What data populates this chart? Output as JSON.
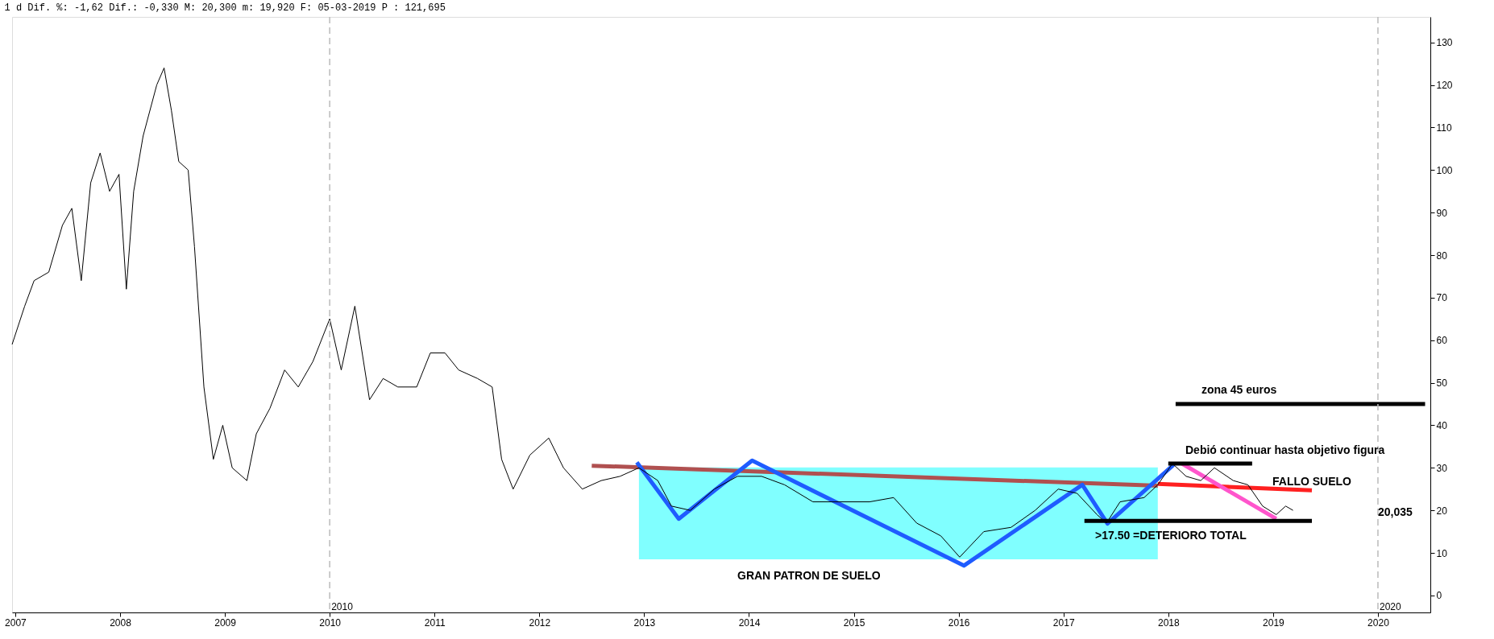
{
  "chart_data": {
    "type": "line",
    "title": "1 d Dif. %: -1,62 Dif.: -0,330 M: 20,300 m: 19,920 F: 05-03-2019 P : 121,695",
    "xlim": [
      2006.97,
      2020.5
    ],
    "xticks": [
      2007,
      2008,
      2009,
      2010,
      2011,
      2012,
      2013,
      2014,
      2015,
      2016,
      2017,
      2018,
      2019,
      2020
    ],
    "ylim": [
      -4,
      136
    ],
    "yticks": [
      0,
      10,
      20,
      30,
      40,
      50,
      60,
      70,
      80,
      90,
      100,
      110,
      120,
      130
    ],
    "grid": false,
    "marker": "none",
    "line_style": "solid",
    "series": [
      {
        "color": "#000000",
        "x": [
          2006.97,
          2007.09,
          2007.18,
          2007.32,
          2007.45,
          2007.54,
          2007.63,
          2007.72,
          2007.81,
          2007.9,
          2007.99,
          2008.06,
          2008.13,
          2008.22,
          2008.35,
          2008.42,
          2008.49,
          2008.56,
          2008.65,
          2008.71,
          2008.8,
          2008.89,
          2008.98,
          2009.07,
          2009.21,
          2009.3,
          2009.43,
          2009.57,
          2009.7,
          2009.84,
          2010.0,
          2010.11,
          2010.24,
          2010.38,
          2010.51,
          2010.65,
          2010.83,
          2010.96,
          2011.1,
          2011.23,
          2011.41,
          2011.55,
          2011.64,
          2011.75,
          2011.91,
          2012.09,
          2012.23,
          2012.41,
          2012.59,
          2012.77,
          2012.95,
          2013.13,
          2013.26,
          2013.44,
          2013.67,
          2013.89,
          2014.12,
          2014.34,
          2014.61,
          2014.88,
          2015.15,
          2015.38,
          2015.6,
          2015.83,
          2016.01,
          2016.24,
          2016.5,
          2016.73,
          2016.95,
          2017.13,
          2017.32,
          2017.41,
          2017.54,
          2017.77,
          2017.9,
          2018.04,
          2018.17,
          2018.31,
          2018.44,
          2018.62,
          2018.76,
          2018.9,
          2019.03,
          2019.12,
          2019.19
        ],
        "values": [
          59,
          68,
          74,
          76,
          87,
          91,
          74,
          97,
          104,
          95,
          99,
          72,
          95,
          108,
          120,
          124,
          114,
          102,
          100,
          82,
          49,
          32,
          40,
          30,
          27,
          38,
          44,
          53,
          49,
          55,
          65,
          53,
          68,
          46,
          51,
          49,
          49,
          57,
          57,
          53,
          51,
          49,
          32,
          25,
          33,
          37,
          30,
          25,
          27,
          28,
          30,
          27,
          21,
          20,
          25,
          28,
          28,
          26,
          22,
          22,
          22,
          23,
          17,
          14,
          9,
          15,
          16,
          20,
          25,
          24,
          19,
          17,
          22,
          23,
          26,
          31,
          28,
          27,
          30,
          27,
          26,
          21,
          19,
          21,
          20
        ]
      },
      {
        "type": "line",
        "color": "#80ffff",
        "x": [
          2012.95,
          2017.9
        ],
        "lower": [
          8.5,
          8.5
        ],
        "upper": [
          30,
          30
        ],
        "values": [
          30,
          30
        ]
      },
      {
        "type": "line",
        "color": "#b05050",
        "x": [
          2012.5,
          2017.9
        ],
        "values": [
          30.5,
          25.8
        ]
      },
      {
        "type": "line",
        "color": "#1f5cff",
        "x": [
          2012.93,
          2013.33,
          2014.03,
          2016.05,
          2017.18,
          2017.42,
          2018.05
        ],
        "values": [
          31.3,
          18,
          31.7,
          7,
          26,
          16.9,
          30.7
        ]
      },
      {
        "type": "line",
        "color": "#ff2020",
        "x": [
          2017.9,
          2019.37
        ],
        "values": [
          26.2,
          24.7
        ]
      },
      {
        "type": "line",
        "color": "#ff55cc",
        "x": [
          2018.13,
          2019.03
        ],
        "values": [
          31,
          18
        ]
      },
      {
        "type": "line",
        "color": "#000000",
        "x": [
          2017.2,
          2019.37
        ],
        "values": [
          17.5,
          17.5
        ]
      },
      {
        "type": "line",
        "color": "#000000",
        "x": [
          2018.07,
          2020.45
        ],
        "values": [
          45,
          45
        ]
      },
      {
        "type": "line",
        "color": "#000000",
        "x": [
          2018.0,
          2018.8
        ],
        "values": [
          31,
          31
        ]
      }
    ],
    "ref_lines": [
      {
        "axis": "x",
        "value": 2010,
        "label": "2010",
        "color": "#bbbbbb",
        "line_style": "dashed"
      },
      {
        "axis": "x",
        "value": 2020,
        "label": "2020",
        "color": "#bbbbbb",
        "line_style": "dashed"
      }
    ],
    "annotations": [
      "zona 45 euros",
      "Debió continuar hasta objetivo figura",
      "FALLO SUELO",
      ">17.50 =DETERIORO TOTAL",
      "GRAN  PATRON DE SUELO",
      "20,035"
    ]
  }
}
